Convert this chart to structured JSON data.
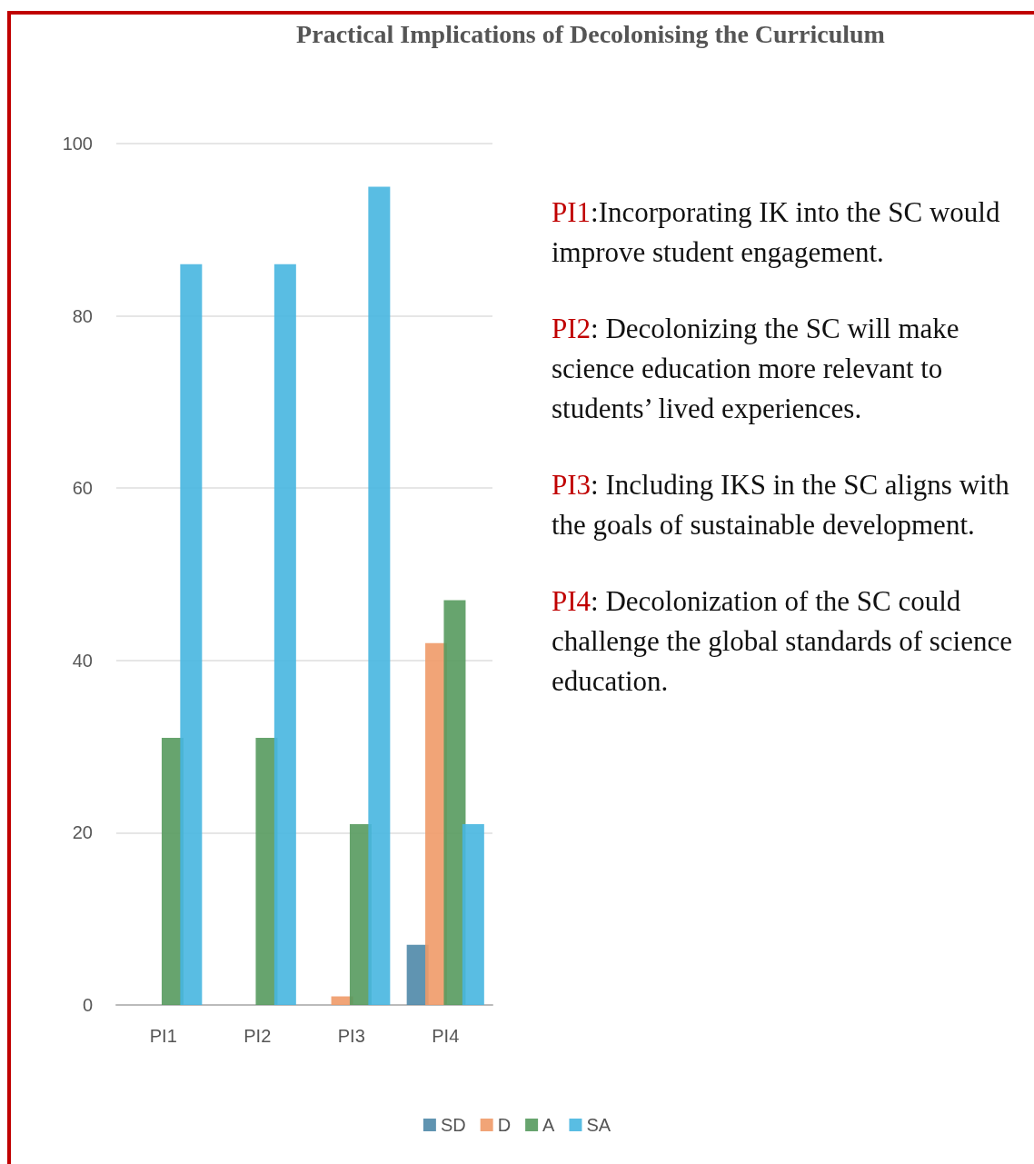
{
  "chart_data": {
    "type": "bar",
    "title": "Practical Implications of Decolonising the Curriculum",
    "categories": [
      "PI1",
      "PI2",
      "PI3",
      "PI4"
    ],
    "series": [
      {
        "name": "SD",
        "color": "#4f88a8",
        "values": [
          0,
          0,
          0,
          7
        ]
      },
      {
        "name": "D",
        "color": "#f09a68",
        "values": [
          0,
          0,
          1,
          42
        ]
      },
      {
        "name": "A",
        "color": "#579a5e",
        "values": [
          31,
          31,
          21,
          47
        ]
      },
      {
        "name": "SA",
        "color": "#47b6e0",
        "values": [
          86,
          86,
          95,
          21
        ]
      }
    ],
    "ylim": [
      0,
      100
    ],
    "yticks": [
      0,
      20,
      40,
      60,
      80,
      100
    ],
    "grid": "y",
    "legend": "bottom",
    "annotations": [
      "PI1:Incorporating IK into the SC would improve student engagement.",
      "PI2: Decolonizing the SC will make science education more relevant to students’ lived experiences.",
      "PI3: Including IKS  in the SC aligns with the goals of sustainable development.",
      "PI4: Decolonization of the SC could challenge the global standards of science education."
    ]
  }
}
